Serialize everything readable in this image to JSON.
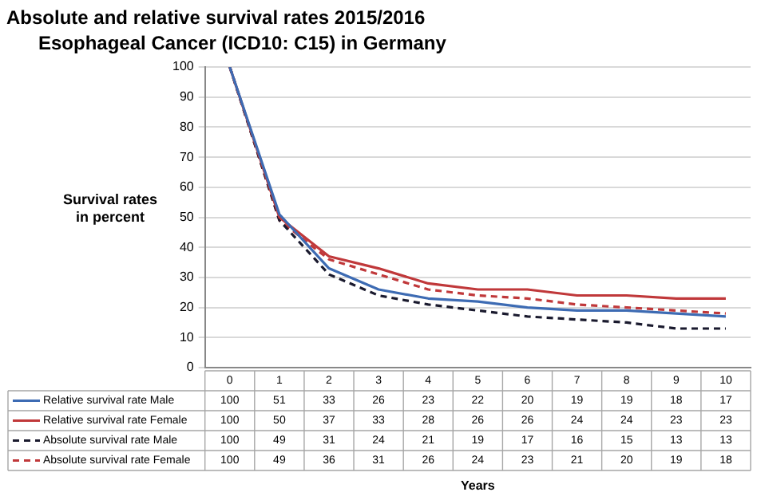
{
  "chart_data": {
    "type": "line",
    "title": "Absolute and relative survival rates 2015/2016",
    "subtitle": "Esophageal Cancer (ICD10: C15) in Germany",
    "annotations": [
      "Years"
    ],
    "ylabel": "Survival rates in percent",
    "categories": [
      "0",
      "1",
      "2",
      "3",
      "4",
      "5",
      "6",
      "7",
      "8",
      "9",
      "10"
    ],
    "series": [
      {
        "name": "Relative survival rate Male",
        "color": "#3d6bb3",
        "line_style": "solid",
        "values": [
          100,
          51,
          33,
          26,
          23,
          22,
          20,
          19,
          19,
          18,
          17
        ]
      },
      {
        "name": "Relative survival rate Female",
        "color": "#c0383a",
        "line_style": "solid",
        "values": [
          100,
          50,
          37,
          33,
          28,
          26,
          26,
          24,
          24,
          23,
          23
        ]
      },
      {
        "name": "Absolute survival rate Male",
        "color": "#1a1a2e",
        "line_style": "dashed",
        "values": [
          100,
          49,
          31,
          24,
          21,
          19,
          17,
          16,
          15,
          13,
          13
        ]
      },
      {
        "name": "Absolute survival rate Female",
        "color": "#c0383a",
        "line_style": "dashed",
        "values": [
          100,
          49,
          36,
          31,
          26,
          24,
          23,
          21,
          20,
          19,
          18
        ]
      }
    ],
    "ylim": [
      0,
      100
    ],
    "yticks": [
      0,
      10,
      20,
      30,
      40,
      50,
      60,
      70,
      80,
      90,
      100
    ],
    "grid": "y",
    "legend": "bottom",
    "marker": "none",
    "data_labels": true
  }
}
